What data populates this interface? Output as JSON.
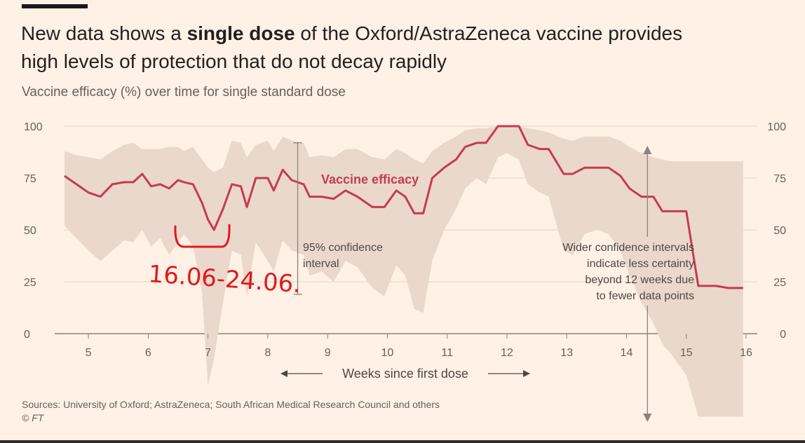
{
  "header": {
    "title_part1": "New data shows a ",
    "title_bold": "single dose",
    "title_part2": " of the Oxford/AstraZeneca vaccine provides high levels of protection that do not decay rapidly",
    "subtitle": "Vaccine efficacy (%) over time for single standard dose"
  },
  "footer": {
    "sources": "Sources: University of Oxford; AstraZeneca; South African Medical Research Council and others",
    "copyright": "© FT"
  },
  "handwritten_note": "16.06-24.06.",
  "colors": {
    "background": "#fff1e5",
    "line": "#c43c4e",
    "band": "#ead8cc",
    "handwriting": "#e0191b"
  },
  "chart_data": {
    "type": "line",
    "title": "New data shows a single dose of the Oxford/AstraZeneca vaccine provides high levels of protection that do not decay rapidly",
    "subtitle": "Vaccine efficacy (%) over time for single standard dose",
    "xlabel": "Weeks since first dose",
    "ylabel": "",
    "xlim": [
      4.6,
      16.0
    ],
    "ylim": [
      0,
      100
    ],
    "x_ticks": [
      5,
      6,
      7,
      8,
      9,
      10,
      11,
      12,
      13,
      14,
      15,
      16
    ],
    "y_ticks": [
      0,
      25,
      50,
      75,
      100
    ],
    "grid": true,
    "series": [
      {
        "name": "Vaccine efficacy",
        "x": [
          4.6,
          4.8,
          5.0,
          5.2,
          5.4,
          5.6,
          5.75,
          5.9,
          6.05,
          6.2,
          6.35,
          6.5,
          6.6,
          6.75,
          6.9,
          7.0,
          7.1,
          7.25,
          7.4,
          7.55,
          7.65,
          7.8,
          8.0,
          8.1,
          8.25,
          8.4,
          8.6,
          8.7,
          8.9,
          9.1,
          9.3,
          9.5,
          9.75,
          9.95,
          10.15,
          10.3,
          10.45,
          10.6,
          10.75,
          10.95,
          11.15,
          11.3,
          11.5,
          11.65,
          11.85,
          12.0,
          12.2,
          12.35,
          12.55,
          12.7,
          12.95,
          13.1,
          13.3,
          13.5,
          13.7,
          13.9,
          14.05,
          14.25,
          14.45,
          14.6,
          14.75,
          15.0,
          15.2,
          15.35,
          15.5,
          15.7,
          15.95
        ],
        "values": [
          76,
          72,
          68,
          66,
          72,
          73,
          73,
          77,
          71,
          72,
          70,
          74,
          73,
          72,
          63,
          55,
          50,
          60,
          72,
          71,
          61,
          75,
          75,
          69,
          79,
          74,
          72,
          66,
          66,
          65,
          69,
          66,
          61,
          61,
          69,
          66,
          58,
          58,
          75,
          80,
          84,
          90,
          92,
          92,
          100,
          100,
          100,
          91,
          89,
          89,
          77,
          77,
          80,
          80,
          80,
          76,
          70,
          66,
          66,
          59,
          59,
          59,
          23,
          23,
          23,
          22,
          22
        ]
      }
    ],
    "confidence_band": {
      "name": "95% confidence interval",
      "x": [
        4.6,
        4.8,
        5.0,
        5.2,
        5.4,
        5.6,
        5.75,
        5.9,
        6.05,
        6.2,
        6.35,
        6.5,
        6.6,
        6.75,
        6.9,
        7.0,
        7.1,
        7.25,
        7.4,
        7.55,
        7.65,
        7.8,
        8.0,
        8.1,
        8.25,
        8.4,
        8.6,
        8.7,
        8.9,
        9.1,
        9.3,
        9.5,
        9.75,
        9.95,
        10.15,
        10.3,
        10.45,
        10.6,
        10.75,
        10.95,
        11.15,
        11.3,
        11.5,
        11.65,
        11.85,
        12.0,
        12.2,
        12.35,
        12.55,
        12.7,
        12.95,
        13.1,
        13.3,
        13.5,
        13.7,
        13.9,
        14.05,
        14.25,
        14.45,
        14.6,
        14.75,
        15.0,
        15.2,
        15.35,
        15.5,
        15.7,
        15.95
      ],
      "upper": [
        88,
        86,
        85,
        84,
        88,
        91,
        92,
        89,
        89,
        89,
        90,
        90,
        88,
        90,
        84,
        80,
        78,
        80,
        93,
        92,
        85,
        91,
        93,
        88,
        95,
        93,
        92,
        85,
        86,
        85,
        89,
        89,
        85,
        84,
        89,
        87,
        84,
        82,
        88,
        92,
        95,
        98,
        99,
        99,
        100,
        100,
        100,
        99,
        98,
        97,
        94,
        93,
        95,
        95,
        95,
        93,
        90,
        87,
        85,
        84,
        83,
        83,
        83,
        83,
        83,
        83,
        83
      ],
      "lower": [
        52,
        46,
        40,
        35,
        40,
        45,
        44,
        50,
        42,
        46,
        38,
        44,
        48,
        42,
        20,
        -25,
        -12,
        15,
        40,
        38,
        18,
        44,
        35,
        30,
        45,
        40,
        38,
        28,
        30,
        25,
        35,
        32,
        22,
        18,
        33,
        28,
        12,
        10,
        35,
        50,
        60,
        70,
        75,
        72,
        85,
        87,
        84,
        72,
        68,
        66,
        40,
        38,
        48,
        50,
        48,
        40,
        28,
        15,
        5,
        -5,
        -10,
        -20,
        -40,
        -40,
        -40,
        -40,
        -40
      ]
    },
    "annotations": [
      {
        "text_lines": [
          "95% confidence",
          "interval"
        ]
      },
      {
        "text_lines": [
          "Wider confidence intervals",
          "indicate less certainty",
          "beyond 12 weeks due",
          "to fewer data points"
        ]
      }
    ]
  }
}
